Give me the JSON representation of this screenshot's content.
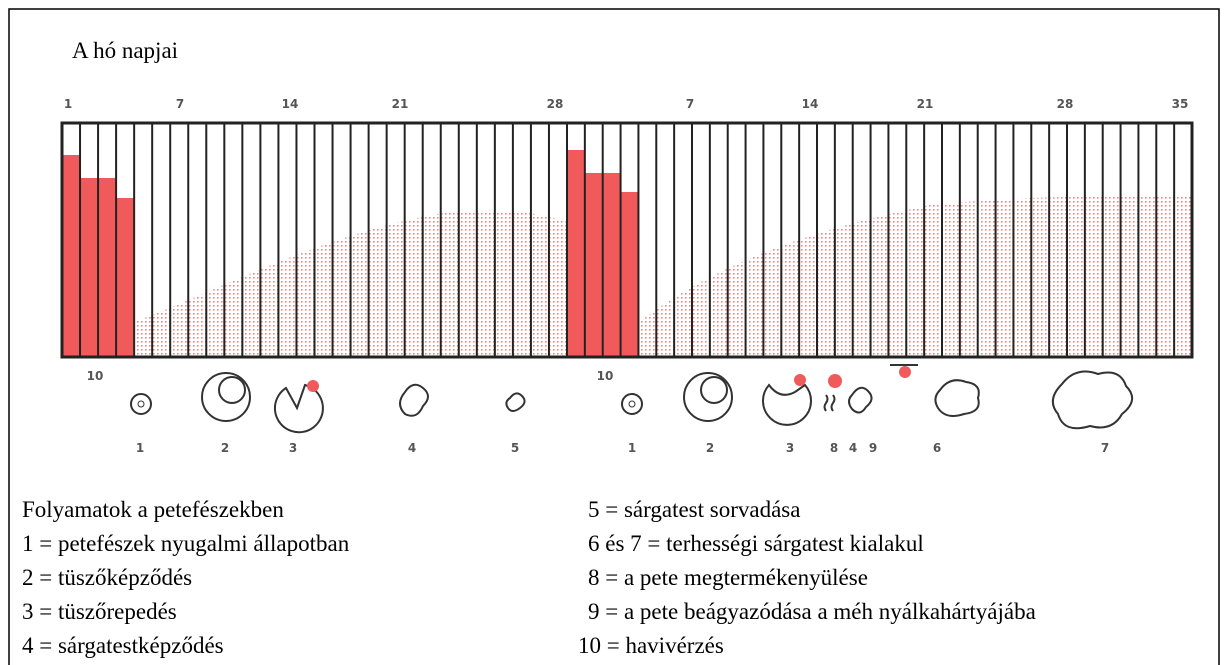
{
  "header": {
    "title": "A hó napjai"
  },
  "day_labels": [
    "1",
    "7",
    "14",
    "21",
    "28",
    "7",
    "14",
    "21",
    "28",
    "35"
  ],
  "stage_labels": [
    "10",
    "1",
    "2",
    "3",
    "4",
    "5",
    "10",
    "1",
    "2",
    "3",
    "8",
    "4",
    "9",
    "6",
    "7"
  ],
  "legend": {
    "heading": "Folyamatok a petefészekben",
    "left": [
      "1 = petefészek nyugalmi állapotban",
      "2 = tüszőképződés",
      "3 = tüszőrepedés",
      "4 = sárgatestképződés"
    ],
    "right": [
      "5 = sárgatest sorvadása",
      "6 és 7 = terhességi sárgatest kialakul",
      "8 = a pete megtermékenyülése",
      "9 = a pete beágyazódása a méh nyálkahártyájába",
      "10 = havivérzés"
    ]
  }
}
